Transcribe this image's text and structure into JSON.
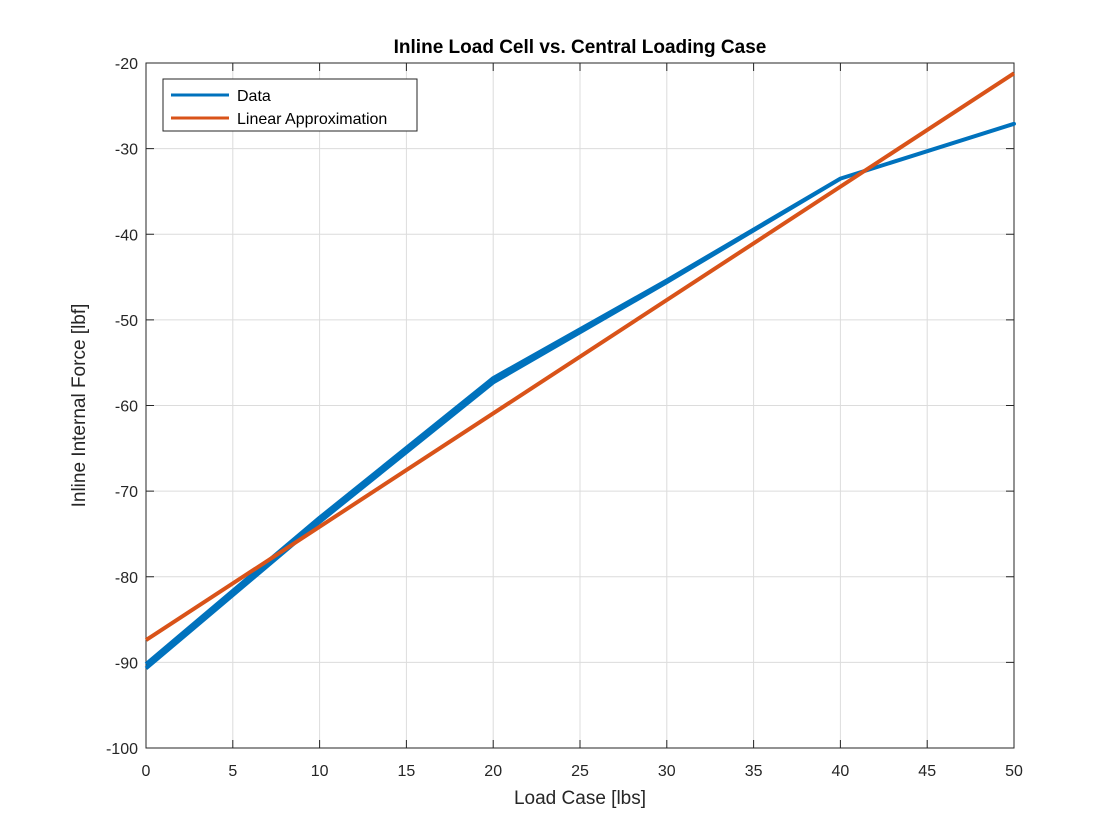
{
  "chart_data": {
    "type": "line",
    "title": "Inline Load Cell vs. Central Loading Case",
    "xlabel": "Load Case [lbs]",
    "ylabel": "Inline Internal Force [lbf]",
    "xlim": [
      0,
      50
    ],
    "ylim": [
      -100,
      -20
    ],
    "xticks": [
      0,
      5,
      10,
      15,
      20,
      25,
      30,
      35,
      40,
      45,
      50
    ],
    "yticks": [
      -100,
      -90,
      -80,
      -70,
      -60,
      -50,
      -40,
      -30,
      -20
    ],
    "grid": true,
    "legend_position": "top-left",
    "series": [
      {
        "name": "Data",
        "color": "#0072BD",
        "x": [
          0,
          10,
          20,
          30,
          40,
          50,
          40,
          30,
          20,
          10,
          0
        ],
        "y": [
          -90.7,
          -73.6,
          -57.3,
          -45.6,
          -33.5,
          -27.1,
          -33.5,
          -45.4,
          -56.8,
          -73.1,
          -90.2
        ]
      },
      {
        "name": "Linear Approximation",
        "color": "#D95319",
        "x": [
          0,
          50
        ],
        "y": [
          -87.4,
          -21.2
        ]
      }
    ]
  }
}
